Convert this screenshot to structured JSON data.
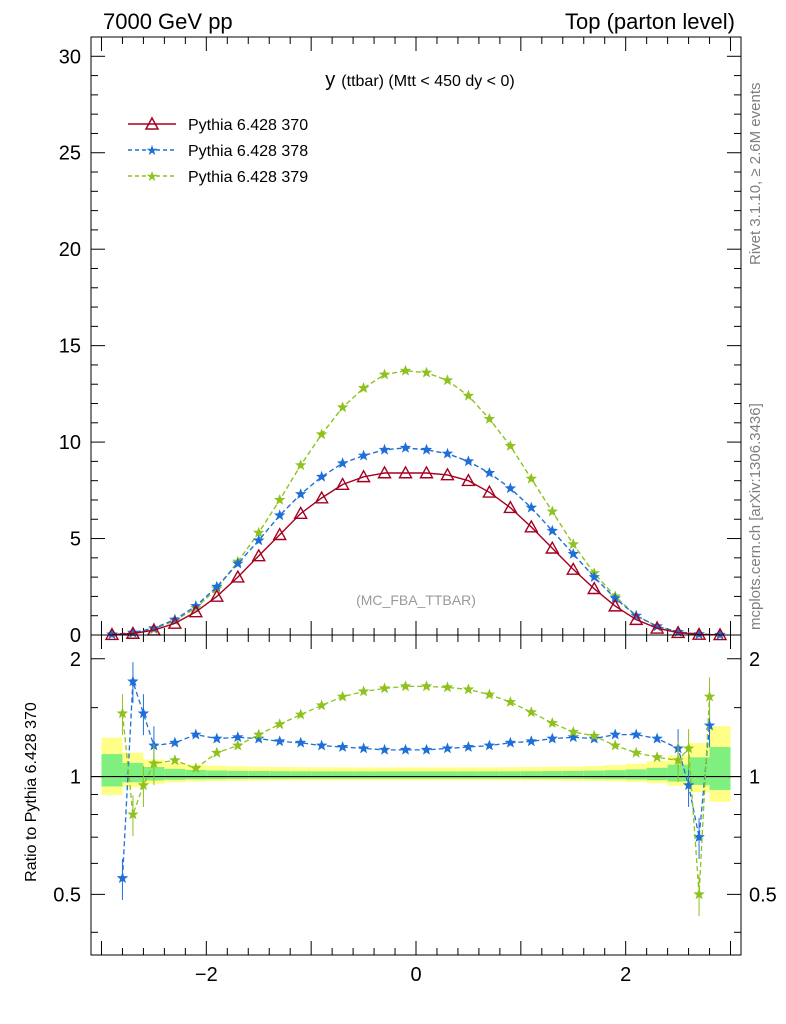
{
  "header": {
    "left": "7000 GeV pp",
    "right": "Top (parton level)"
  },
  "side_labels": {
    "top": "Rivet 3.1.10, ≥ 2.6M events",
    "bottom": "mcplots.cern.ch [arXiv:1306.3436]"
  },
  "chart_data": [
    {
      "type": "line",
      "panel": "main",
      "title_main": "y",
      "title_rest": "(ttbar) (Mtt < 450 dy < 0)",
      "watermark": "(MC_FBA_TTBAR)",
      "xlim": [
        -3.1,
        3.1
      ],
      "ylim": [
        0,
        31
      ],
      "y_ticks": [
        0,
        5,
        10,
        15,
        20,
        25,
        30
      ],
      "y_tick_labels": [
        "0",
        "5",
        "10",
        "15",
        "20",
        "25",
        "30"
      ],
      "legend_position": "top-left",
      "series": [
        {
          "name": "Pythia 6.428 370",
          "color": "#a50021",
          "marker": "open-triangle",
          "line": "solid",
          "x": [
            -2.9,
            -2.7,
            -2.5,
            -2.3,
            -2.1,
            -1.9,
            -1.7,
            -1.5,
            -1.3,
            -1.1,
            -0.9,
            -0.7,
            -0.5,
            -0.3,
            -0.1,
            0.1,
            0.3,
            0.5,
            0.7,
            0.9,
            1.1,
            1.3,
            1.5,
            1.7,
            1.9,
            2.1,
            2.3,
            2.5,
            2.7,
            2.9
          ],
          "y": [
            0.02,
            0.08,
            0.25,
            0.6,
            1.2,
            2.0,
            3.0,
            4.1,
            5.2,
            6.3,
            7.1,
            7.8,
            8.2,
            8.4,
            8.4,
            8.4,
            8.3,
            8.0,
            7.4,
            6.6,
            5.6,
            4.5,
            3.4,
            2.4,
            1.5,
            0.8,
            0.35,
            0.12,
            0.03,
            0.01
          ]
        },
        {
          "name": "Pythia 6.428 378",
          "color": "#1e6fd9",
          "marker": "star",
          "line": "dashed",
          "x": [
            -2.9,
            -2.7,
            -2.5,
            -2.3,
            -2.1,
            -1.9,
            -1.7,
            -1.5,
            -1.3,
            -1.1,
            -0.9,
            -0.7,
            -0.5,
            -0.3,
            -0.1,
            0.1,
            0.3,
            0.5,
            0.7,
            0.9,
            1.1,
            1.3,
            1.5,
            1.7,
            1.9,
            2.1,
            2.3,
            2.5,
            2.7,
            2.9
          ],
          "y": [
            0.03,
            0.12,
            0.35,
            0.8,
            1.5,
            2.5,
            3.7,
            4.9,
            6.2,
            7.3,
            8.2,
            8.9,
            9.3,
            9.6,
            9.7,
            9.6,
            9.4,
            9.0,
            8.4,
            7.6,
            6.6,
            5.4,
            4.2,
            3.0,
            1.9,
            1.0,
            0.45,
            0.16,
            0.04,
            0.01
          ]
        },
        {
          "name": "Pythia 6.428 379",
          "color": "#8dc21f",
          "marker": "star",
          "line": "dashed",
          "x": [
            -2.9,
            -2.7,
            -2.5,
            -2.3,
            -2.1,
            -1.9,
            -1.7,
            -1.5,
            -1.3,
            -1.1,
            -0.9,
            -0.7,
            -0.5,
            -0.3,
            -0.1,
            0.1,
            0.3,
            0.5,
            0.7,
            0.9,
            1.1,
            1.3,
            1.5,
            1.7,
            1.9,
            2.1,
            2.3,
            2.5,
            2.7,
            2.9
          ],
          "y": [
            0.03,
            0.1,
            0.3,
            0.75,
            1.4,
            2.4,
            3.8,
            5.3,
            7.0,
            8.8,
            10.4,
            11.8,
            12.8,
            13.5,
            13.7,
            13.6,
            13.2,
            12.4,
            11.2,
            9.8,
            8.1,
            6.4,
            4.7,
            3.2,
            2.0,
            1.0,
            0.45,
            0.16,
            0.04,
            0.01
          ]
        }
      ]
    },
    {
      "type": "line",
      "panel": "ratio",
      "ylabel": "Ratio to Pythia 6.428 370",
      "xlim": [
        -3.1,
        3.1
      ],
      "ylim": [
        0.35,
        2.3
      ],
      "x_ticks": [
        -2,
        0,
        2
      ],
      "x_tick_labels": [
        "−2",
        "0",
        "2"
      ],
      "y_ticks": [
        0.5,
        1,
        2
      ],
      "y_tick_labels": [
        "0.5",
        "1",
        "2"
      ],
      "reference": 1,
      "band_colors": {
        "inner": "#7ff07f",
        "outer": "#ffff88"
      },
      "series": [
        {
          "name": "Pythia 6.428 378",
          "color": "#1e6fd9",
          "x": [
            -2.8,
            -2.7,
            -2.6,
            -2.5,
            -2.3,
            -2.1,
            -1.9,
            -1.7,
            -1.5,
            -1.3,
            -1.1,
            -0.9,
            -0.7,
            -0.5,
            -0.3,
            -0.1,
            0.1,
            0.3,
            0.5,
            0.7,
            0.9,
            1.1,
            1.3,
            1.5,
            1.7,
            1.9,
            2.1,
            2.3,
            2.5,
            2.6,
            2.7,
            2.8
          ],
          "y": [
            0.55,
            1.75,
            1.45,
            1.2,
            1.22,
            1.28,
            1.25,
            1.26,
            1.25,
            1.23,
            1.22,
            1.2,
            1.19,
            1.18,
            1.17,
            1.17,
            1.17,
            1.18,
            1.19,
            1.2,
            1.22,
            1.23,
            1.25,
            1.26,
            1.25,
            1.28,
            1.28,
            1.25,
            1.18,
            0.95,
            0.7,
            1.35
          ]
        },
        {
          "name": "Pythia 6.428 379",
          "color": "#8dc21f",
          "x": [
            -2.8,
            -2.7,
            -2.6,
            -2.5,
            -2.3,
            -2.1,
            -1.9,
            -1.7,
            -1.5,
            -1.3,
            -1.1,
            -0.9,
            -0.7,
            -0.5,
            -0.3,
            -0.1,
            0.1,
            0.3,
            0.5,
            0.7,
            0.9,
            1.1,
            1.3,
            1.5,
            1.7,
            1.9,
            2.1,
            2.3,
            2.5,
            2.6,
            2.7,
            2.8
          ],
          "y": [
            1.45,
            0.8,
            0.95,
            1.08,
            1.1,
            1.05,
            1.15,
            1.2,
            1.28,
            1.36,
            1.44,
            1.52,
            1.6,
            1.65,
            1.68,
            1.7,
            1.7,
            1.69,
            1.67,
            1.62,
            1.55,
            1.46,
            1.37,
            1.3,
            1.27,
            1.2,
            1.15,
            1.12,
            1.1,
            1.18,
            0.5,
            1.6
          ]
        }
      ]
    }
  ]
}
